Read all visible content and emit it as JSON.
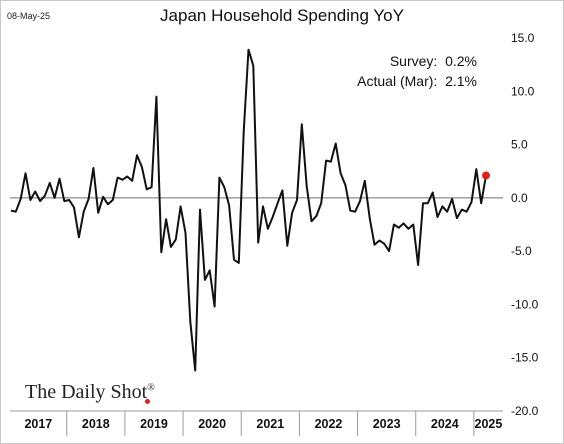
{
  "header": {
    "date": "08-May-25"
  },
  "annotations": {
    "survey": "Survey:  0.2%",
    "actual": "Actual (Mar):  2.1%"
  },
  "brand": {
    "text": "The Daily Shot",
    "mark": "®"
  },
  "colors": {
    "line": "#111111",
    "zero_line": "#6f6f6f",
    "highlight": "#e0201b",
    "year_dividers": "#9a9a9a"
  },
  "chart_data": {
    "type": "line",
    "title": "Japan Household Spending YoY",
    "xlabel": "",
    "ylabel": "",
    "ylim": [
      -20.0,
      15.0
    ],
    "yticks": [
      "15.0",
      "10.0",
      "5.0",
      "0.0",
      "-5.0",
      "-10.0",
      "-15.0",
      "-20.0"
    ],
    "ytick_values": [
      15,
      10,
      5,
      0,
      -5,
      -10,
      -15,
      -20
    ],
    "year_labels": [
      "2017",
      "2018",
      "2019",
      "2020",
      "2021",
      "2022",
      "2023",
      "2024",
      "2025"
    ],
    "x_start": "2017-01",
    "x_end": "2025-03",
    "grid": false,
    "zero_line": true,
    "series": [
      {
        "values": [
          -1.2,
          -1.3,
          -0.1,
          2.3,
          -0.2,
          0.6,
          -0.3,
          0.2,
          1.4,
          0.0,
          1.8,
          -0.3,
          -0.2,
          -0.9,
          -3.7,
          -1.3,
          -0.1,
          2.8,
          -1.4,
          0.1,
          -0.6,
          -0.2,
          1.9,
          1.7,
          2.0,
          1.6,
          4.0,
          2.9,
          0.8,
          1.0,
          9.5,
          -5.1,
          -2.0,
          -4.6,
          -3.9,
          -0.8,
          -3.3,
          -11.6,
          -16.2,
          -1.1,
          -7.7,
          -6.8,
          -10.2,
          1.9,
          1.0,
          -0.7,
          -5.8,
          -6.1,
          6.2,
          13.9,
          12.4,
          -4.2,
          -0.8,
          -2.9,
          -1.8,
          -0.5,
          0.7,
          -4.5,
          -1.4,
          -0.2,
          6.9,
          1.1,
          -2.2,
          -1.7,
          -0.5,
          3.5,
          3.4,
          5.1,
          2.3,
          1.2,
          -1.2,
          -1.3,
          -0.3,
          1.6,
          -1.9,
          -4.4,
          -4.0,
          -4.3,
          -5.0,
          -2.5,
          -2.8,
          -2.4,
          -2.9,
          -2.5,
          -6.3,
          -0.5,
          -0.5,
          0.5,
          -1.8,
          -0.8,
          -1.3,
          -0.1,
          -1.9,
          -1.1,
          -1.3,
          -0.4,
          2.7,
          -0.5,
          2.1
        ]
      }
    ],
    "highlight_point": {
      "label": "Mar 2025",
      "value": 2.1
    }
  }
}
